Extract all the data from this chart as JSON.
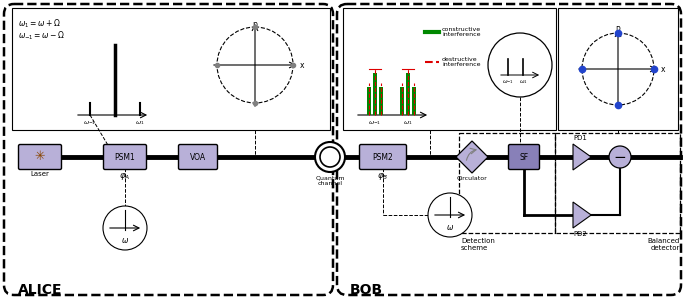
{
  "alice_label": "ALICE",
  "bob_label": "BOB",
  "bg_color": "#ffffff",
  "component_color": "#b8b0d8",
  "component_color_dark": "#8880b8",
  "green_bar": "#008800",
  "red_dashed": "#dd0000",
  "eq1": "$\\omega_1=\\omega+\\Omega$",
  "eq2": "$\\omega_{-1}=\\omega-\\Omega$",
  "omega_m1": "$\\omega_{-1}$",
  "omega_1": "$\\omega_1$",
  "omega": "$\\omega$",
  "phi_a": "$\\varphi_A$",
  "phi_b": "$\\varphi_B$",
  "p_label": "p",
  "x_label": "x",
  "P_label": "P",
  "X_label": "x",
  "constructive": "constructive\ninterference",
  "destructive": "destructive\ninterference",
  "quantum_channel": "Quantum\nchannel",
  "circulator": "Circulator",
  "detection_scheme": "Detection\nscheme",
  "balanced_detector": "Balanced\ndetector"
}
